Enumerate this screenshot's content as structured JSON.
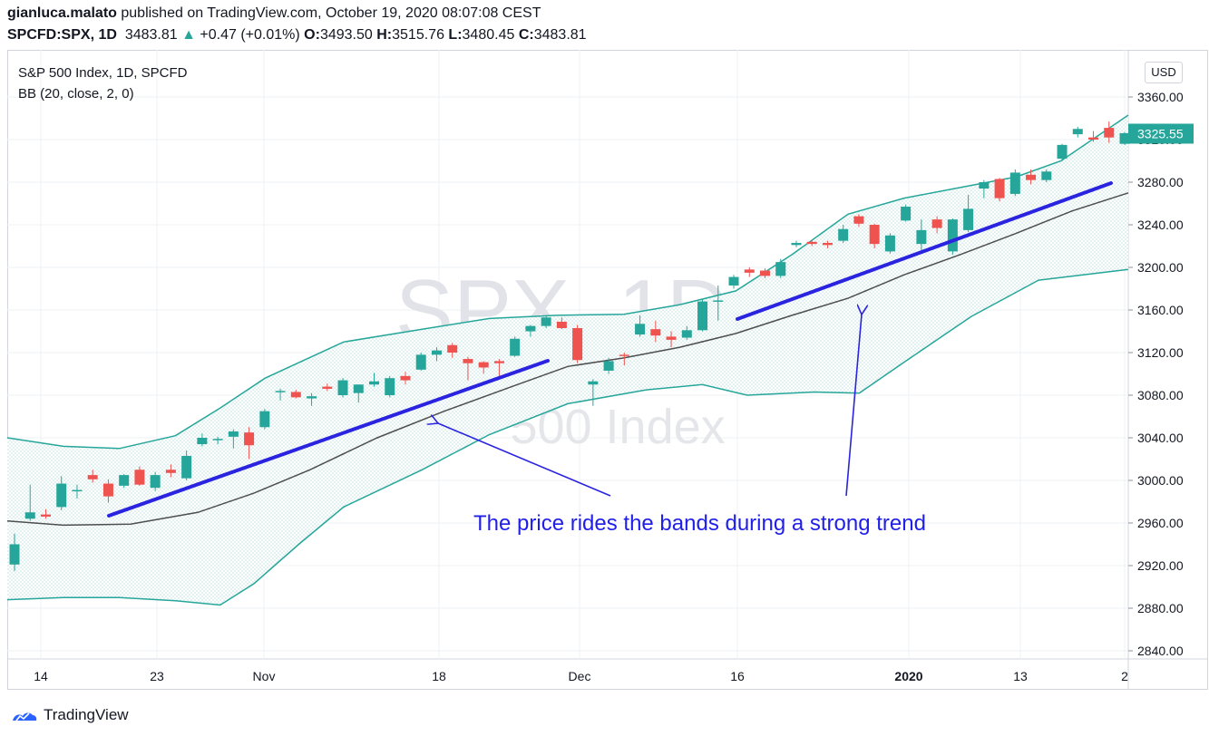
{
  "header": {
    "publisher_user": "gianluca.malato",
    "publisher_text": " published on TradingView.com, October 19, 2020 08:07:08 CEST"
  },
  "quote": {
    "symbol": "SPCFD:SPX, 1D",
    "last": "3483.81",
    "arrow": "▲",
    "change": "+0.47 (+0.01%)",
    "o_label": "O:",
    "o": "3493.50",
    "h_label": "H:",
    "h": "3515.76",
    "l_label": "L:",
    "l": "3480.45",
    "c_label": "C:",
    "c": "3483.81"
  },
  "legend": {
    "title": "S&P 500 Index, 1D, SPCFD",
    "indicator": "BB (20, close, 2, 0)"
  },
  "watermark": {
    "symbol": "SPX, 1D",
    "name": "S&P 500 Index"
  },
  "currency_button": "USD",
  "annotation": "The price rides the bands during a strong trend",
  "footer": {
    "brand": "TradingView"
  },
  "colors": {
    "up": "#26a69a",
    "down": "#ef5350",
    "band": "#26a69a",
    "basis": "#4e4e50",
    "trendline": "#2a24e0",
    "arrow": "#2a24e0",
    "annotation": "#1f1fe8",
    "last_price_tag": "#26a69a"
  },
  "chart_data": {
    "type": "candlestick",
    "title": "S&P 500 Index, 1D, SPCFD",
    "y_axis": {
      "ticks": [
        "3360.00",
        "3320.00",
        "3280.00",
        "3240.00",
        "3200.00",
        "3160.00",
        "3120.00",
        "3080.00",
        "3040.00",
        "3000.00",
        "2960.00",
        "2920.00",
        "2880.00",
        "2840.00"
      ],
      "range": [
        2840,
        3360
      ],
      "last_price_label": "3325.55",
      "last_price": 3325.55
    },
    "x_axis": {
      "ticks": [
        "14",
        "23",
        "Nov",
        "18",
        "Dec",
        "16",
        "2020",
        "13",
        "2"
      ]
    },
    "grid": true,
    "candles": [
      {
        "o": 2921,
        "h": 2950,
        "l": 2915,
        "c": 2940
      },
      {
        "o": 2964,
        "h": 2996,
        "l": 2962,
        "c": 2970
      },
      {
        "o": 2968,
        "h": 2973,
        "l": 2964,
        "c": 2966
      },
      {
        "o": 2975,
        "h": 3004,
        "l": 2972,
        "c": 2997
      },
      {
        "o": 2990,
        "h": 2996,
        "l": 2983,
        "c": 2991
      },
      {
        "o": 3005,
        "h": 3010,
        "l": 2998,
        "c": 3001
      },
      {
        "o": 2997,
        "h": 3001,
        "l": 2979,
        "c": 2985
      },
      {
        "o": 2995,
        "h": 3006,
        "l": 2993,
        "c": 3005
      },
      {
        "o": 3010,
        "h": 3013,
        "l": 2995,
        "c": 2996
      },
      {
        "o": 2993,
        "h": 3008,
        "l": 2990,
        "c": 3005
      },
      {
        "o": 3010,
        "h": 3015,
        "l": 3003,
        "c": 3007
      },
      {
        "o": 3002,
        "h": 3028,
        "l": 3000,
        "c": 3023
      },
      {
        "o": 3034,
        "h": 3044,
        "l": 3032,
        "c": 3040
      },
      {
        "o": 3038,
        "h": 3041,
        "l": 3034,
        "c": 3039
      },
      {
        "o": 3041,
        "h": 3048,
        "l": 3030,
        "c": 3046
      },
      {
        "o": 3045,
        "h": 3050,
        "l": 3020,
        "c": 3033
      },
      {
        "o": 3050,
        "h": 3067,
        "l": 3048,
        "c": 3065
      },
      {
        "o": 3083,
        "h": 3086,
        "l": 3075,
        "c": 3084
      },
      {
        "o": 3083,
        "h": 3085,
        "l": 3077,
        "c": 3078
      },
      {
        "o": 3077,
        "h": 3082,
        "l": 3070,
        "c": 3079
      },
      {
        "o": 3088,
        "h": 3091,
        "l": 3084,
        "c": 3086
      },
      {
        "o": 3080,
        "h": 3096,
        "l": 3078,
        "c": 3094
      },
      {
        "o": 3082,
        "h": 3090,
        "l": 3073,
        "c": 3090
      },
      {
        "o": 3090,
        "h": 3101,
        "l": 3088,
        "c": 3093
      },
      {
        "o": 3080,
        "h": 3098,
        "l": 3078,
        "c": 3096
      },
      {
        "o": 3098,
        "h": 3102,
        "l": 3090,
        "c": 3094
      },
      {
        "o": 3104,
        "h": 3120,
        "l": 3103,
        "c": 3118
      },
      {
        "o": 3118,
        "h": 3125,
        "l": 3112,
        "c": 3122
      },
      {
        "o": 3127,
        "h": 3129,
        "l": 3115,
        "c": 3120
      },
      {
        "o": 3114,
        "h": 3116,
        "l": 3094,
        "c": 3110
      },
      {
        "o": 3111,
        "h": 3112,
        "l": 3100,
        "c": 3106
      },
      {
        "o": 3112,
        "h": 3114,
        "l": 3098,
        "c": 3110
      },
      {
        "o": 3117,
        "h": 3135,
        "l": 3116,
        "c": 3133
      },
      {
        "o": 3140,
        "h": 3146,
        "l": 3135,
        "c": 3145
      },
      {
        "o": 3145,
        "h": 3154,
        "l": 3143,
        "c": 3153
      },
      {
        "o": 3149,
        "h": 3153,
        "l": 3142,
        "c": 3143
      },
      {
        "o": 3143,
        "h": 3146,
        "l": 3110,
        "c": 3113
      },
      {
        "o": 3090,
        "h": 3095,
        "l": 3070,
        "c": 3093
      },
      {
        "o": 3103,
        "h": 3115,
        "l": 3100,
        "c": 3112
      },
      {
        "o": 3118,
        "h": 3120,
        "l": 3108,
        "c": 3117
      },
      {
        "o": 3137,
        "h": 3155,
        "l": 3135,
        "c": 3147
      },
      {
        "o": 3142,
        "h": 3150,
        "l": 3130,
        "c": 3136
      },
      {
        "o": 3135,
        "h": 3140,
        "l": 3125,
        "c": 3132
      },
      {
        "o": 3134,
        "h": 3145,
        "l": 3132,
        "c": 3141
      },
      {
        "o": 3141,
        "h": 3170,
        "l": 3140,
        "c": 3168
      },
      {
        "o": 3168,
        "h": 3183,
        "l": 3150,
        "c": 3169
      },
      {
        "o": 3183,
        "h": 3193,
        "l": 3180,
        "c": 3191
      },
      {
        "o": 3198,
        "h": 3200,
        "l": 3191,
        "c": 3195
      },
      {
        "o": 3197,
        "h": 3199,
        "l": 3190,
        "c": 3192
      },
      {
        "o": 3192,
        "h": 3208,
        "l": 3190,
        "c": 3205
      },
      {
        "o": 3221,
        "h": 3225,
        "l": 3219,
        "c": 3223
      },
      {
        "o": 3224,
        "h": 3226,
        "l": 3220,
        "c": 3222
      },
      {
        "o": 3223,
        "h": 3225,
        "l": 3218,
        "c": 3221
      },
      {
        "o": 3225,
        "h": 3240,
        "l": 3223,
        "c": 3236
      },
      {
        "o": 3248,
        "h": 3250,
        "l": 3238,
        "c": 3241
      },
      {
        "o": 3240,
        "h": 3241,
        "l": 3218,
        "c": 3222
      },
      {
        "o": 3215,
        "h": 3232,
        "l": 3213,
        "c": 3230
      },
      {
        "o": 3244,
        "h": 3259,
        "l": 3243,
        "c": 3257
      },
      {
        "o": 3222,
        "h": 3245,
        "l": 3214,
        "c": 3235
      },
      {
        "o": 3245,
        "h": 3248,
        "l": 3232,
        "c": 3237
      },
      {
        "o": 3215,
        "h": 3246,
        "l": 3212,
        "c": 3245
      },
      {
        "o": 3235,
        "h": 3268,
        "l": 3233,
        "c": 3255
      },
      {
        "o": 3274,
        "h": 3282,
        "l": 3265,
        "c": 3280
      },
      {
        "o": 3283,
        "h": 3284,
        "l": 3262,
        "c": 3265
      },
      {
        "o": 3269,
        "h": 3292,
        "l": 3267,
        "c": 3289
      },
      {
        "o": 3287,
        "h": 3292,
        "l": 3278,
        "c": 3282
      },
      {
        "o": 3282,
        "h": 3292,
        "l": 3280,
        "c": 3290
      },
      {
        "o": 3302,
        "h": 3316,
        "l": 3300,
        "c": 3315
      },
      {
        "o": 3325,
        "h": 3332,
        "l": 3322,
        "c": 3330
      },
      {
        "o": 3322,
        "h": 3328,
        "l": 3318,
        "c": 3320
      },
      {
        "o": 3331,
        "h": 3337,
        "l": 3317,
        "c": 3322
      },
      {
        "o": 3316,
        "h": 3327,
        "l": 3315,
        "c": 3326
      }
    ],
    "bollinger_bands": {
      "params": "BB (20, close, 2, 0)",
      "upper": [
        [
          0,
          3040
        ],
        [
          0.05,
          3032
        ],
        [
          0.1,
          3030
        ],
        [
          0.15,
          3042
        ],
        [
          0.19,
          3068
        ],
        [
          0.23,
          3096
        ],
        [
          0.3,
          3130
        ],
        [
          0.37,
          3142
        ],
        [
          0.43,
          3152
        ],
        [
          0.49,
          3155
        ],
        [
          0.55,
          3156
        ],
        [
          0.6,
          3165
        ],
        [
          0.65,
          3178
        ],
        [
          0.7,
          3212
        ],
        [
          0.75,
          3250
        ],
        [
          0.8,
          3265
        ],
        [
          0.85,
          3275
        ],
        [
          0.9,
          3285
        ],
        [
          0.94,
          3300
        ],
        [
          1,
          3343
        ]
      ],
      "basis": [
        [
          0,
          2962
        ],
        [
          0.05,
          2958
        ],
        [
          0.11,
          2959
        ],
        [
          0.17,
          2970
        ],
        [
          0.22,
          2988
        ],
        [
          0.27,
          3010
        ],
        [
          0.33,
          3040
        ],
        [
          0.39,
          3065
        ],
        [
          0.45,
          3088
        ],
        [
          0.5,
          3107
        ],
        [
          0.55,
          3115
        ],
        [
          0.6,
          3125
        ],
        [
          0.65,
          3138
        ],
        [
          0.7,
          3155
        ],
        [
          0.75,
          3171
        ],
        [
          0.8,
          3193
        ],
        [
          0.85,
          3212
        ],
        [
          0.9,
          3232
        ],
        [
          0.95,
          3253
        ],
        [
          1,
          3270
        ]
      ],
      "lower": [
        [
          0,
          2888
        ],
        [
          0.05,
          2890
        ],
        [
          0.1,
          2890
        ],
        [
          0.15,
          2887
        ],
        [
          0.19,
          2883
        ],
        [
          0.22,
          2903
        ],
        [
          0.26,
          2940
        ],
        [
          0.3,
          2975
        ],
        [
          0.37,
          3010
        ],
        [
          0.43,
          3043
        ],
        [
          0.5,
          3072
        ],
        [
          0.57,
          3085
        ],
        [
          0.62,
          3090
        ],
        [
          0.66,
          3080
        ],
        [
          0.72,
          3083
        ],
        [
          0.76,
          3082
        ],
        [
          0.8,
          3111
        ],
        [
          0.86,
          3154
        ],
        [
          0.92,
          3188
        ],
        [
          1,
          3198
        ]
      ]
    }
  }
}
